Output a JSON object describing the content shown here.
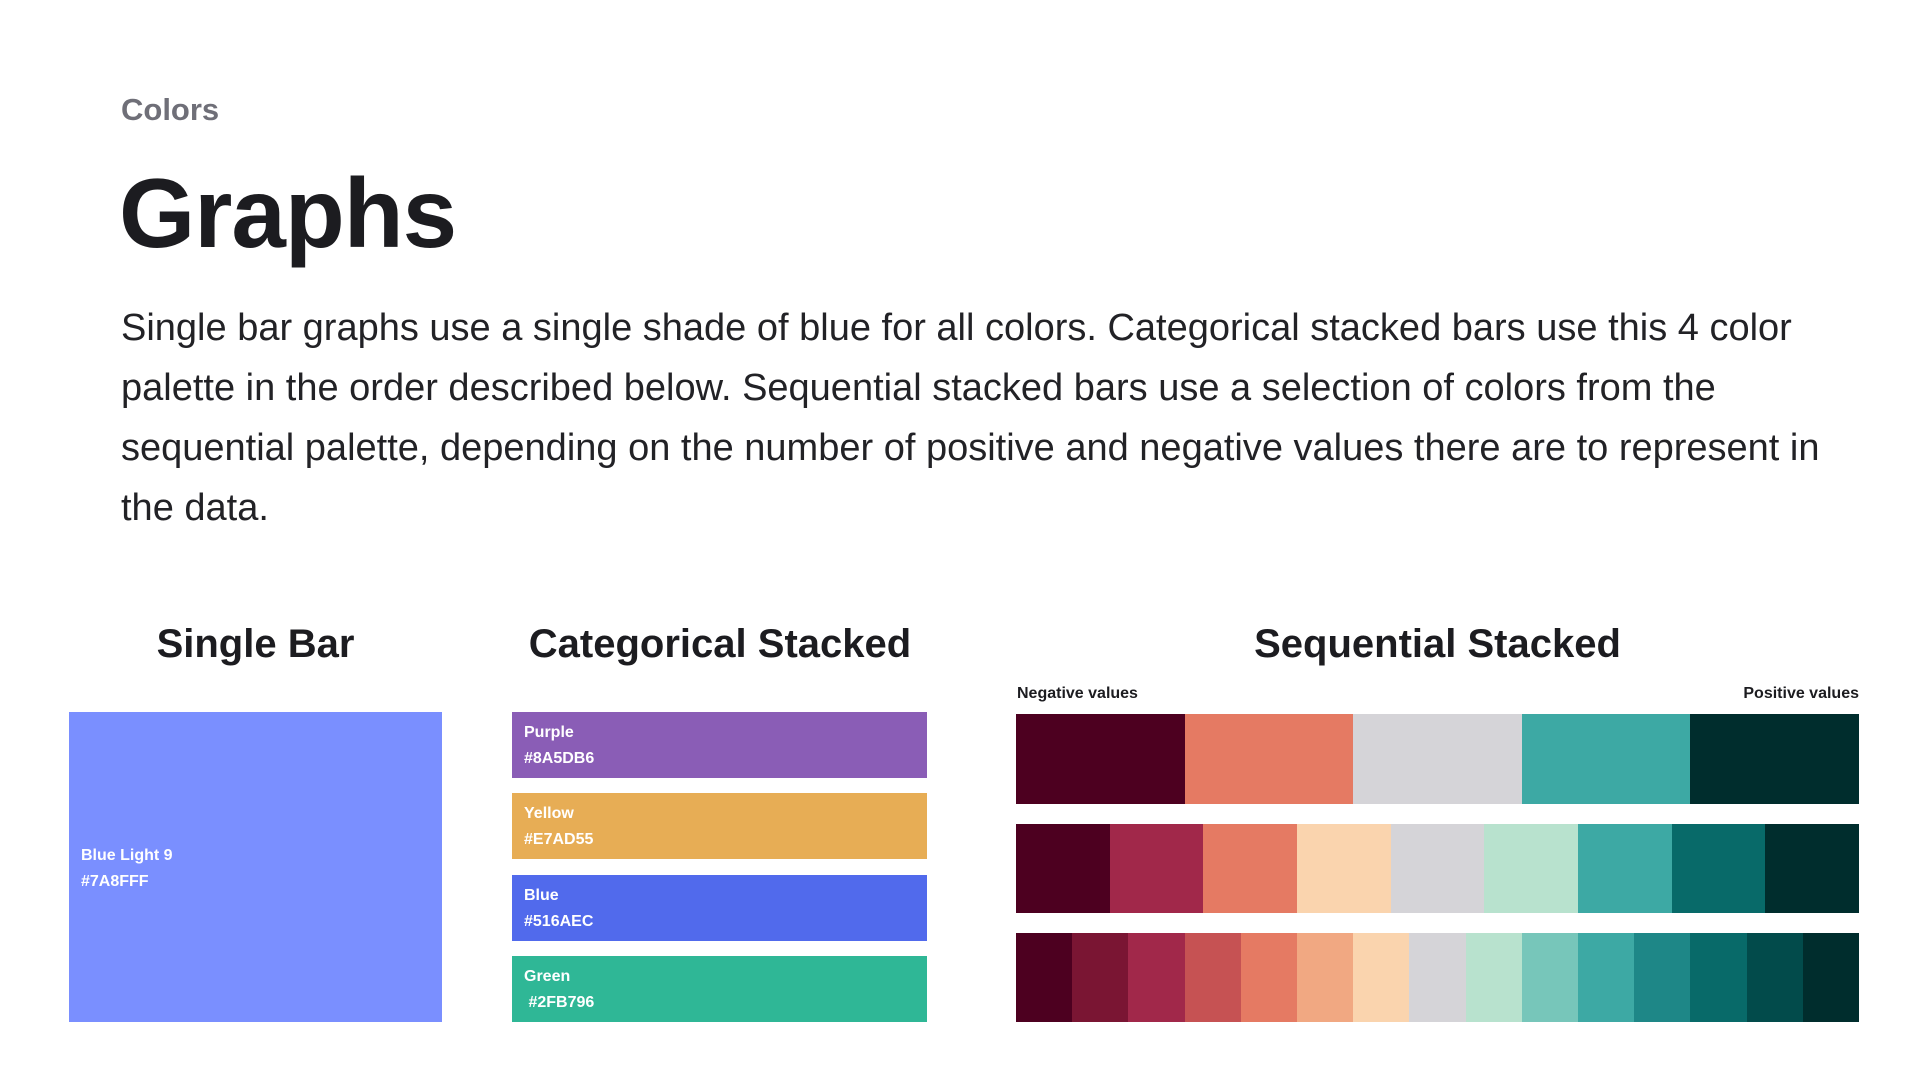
{
  "header": {
    "eyebrow": "Colors",
    "title": "Graphs",
    "intro": "Single bar graphs use a single shade of blue for all colors. Categorical stacked bars use this 4 color palette in the order described below. Sequential stacked bars use a selection of colors from the sequential palette, depending on the number of positive and negative values there are to represent in the data."
  },
  "single_bar": {
    "title": "Single Bar",
    "swatch": {
      "name": "Blue Light 9",
      "hex": "#7A8FFF",
      "color": "#7A8FFF"
    }
  },
  "categorical": {
    "title": "Categorical Stacked",
    "swatches": [
      {
        "name": "Purple",
        "hex": "#8A5DB6",
        "color": "#8A5DB6"
      },
      {
        "name": "Yellow",
        "hex": "#E7AD55",
        "color": "#E7AD55"
      },
      {
        "name": "Blue",
        "hex": "#516AEC",
        "color": "#516AEC"
      },
      {
        "name": "Green",
        "hex": " #2FB796",
        "color": "#2FB796"
      }
    ]
  },
  "sequential": {
    "title": "Sequential Stacked",
    "negative_label": "Negative values",
    "positive_label": "Positive values",
    "rows": [
      [
        "#4D0020",
        "#E57A63",
        "#D5D4D8",
        "#3DA9A4",
        "#002D2D"
      ],
      [
        "#4D0020",
        "#A1284A",
        "#E57A63",
        "#FAD4AE",
        "#D5D4D8",
        "#B8E2CE",
        "#3DA9A4",
        "#086A69",
        "#002D2D"
      ],
      [
        "#4D0020",
        "#7A1533",
        "#A1284A",
        "#C65253",
        "#E57A63",
        "#F1A882",
        "#FAD4AE",
        "#D5D4D8",
        "#B8E2CE",
        "#77C6BA",
        "#3DA9A4",
        "#1E8787",
        "#086A69",
        "#024B4B",
        "#002D2D"
      ]
    ]
  }
}
